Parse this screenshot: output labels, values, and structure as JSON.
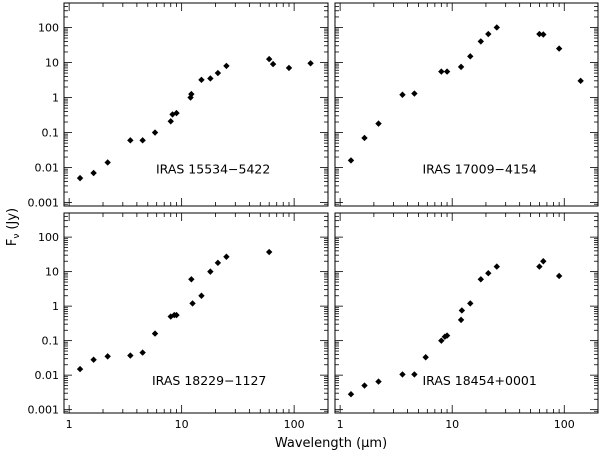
{
  "figure": {
    "ylabel": "F",
    "ylabel_sub": "ν",
    "ylabel_unit": "(Jy)",
    "xlabel": "Wavelength (μm)"
  },
  "chart_data": [
    {
      "type": "scatter",
      "label": "IRAS 15534−5422",
      "xscale": "log",
      "yscale": "log",
      "xlim": [
        0.9,
        200
      ],
      "ylim": [
        0.0008,
        500
      ],
      "x_tick_labels": [
        "1",
        "10",
        "100"
      ],
      "y_tick_labels": [
        "0.001",
        "0.01",
        "0.1",
        "1",
        "10",
        "100"
      ],
      "points": [
        [
          1.25,
          0.005
        ],
        [
          1.65,
          0.007
        ],
        [
          2.2,
          0.014
        ],
        [
          3.5,
          0.06
        ],
        [
          4.5,
          0.06
        ],
        [
          5.8,
          0.1
        ],
        [
          8.0,
          0.21
        ],
        [
          8.3,
          0.33
        ],
        [
          9.0,
          0.36
        ],
        [
          12.0,
          1.0
        ],
        [
          12.2,
          1.25
        ],
        [
          15.0,
          3.2
        ],
        [
          18.0,
          3.5
        ],
        [
          21.0,
          5.0
        ],
        [
          25.0,
          8.0
        ],
        [
          60.0,
          12.5
        ],
        [
          65.0,
          9.0
        ],
        [
          90.0,
          7.0
        ],
        [
          140.0,
          9.5
        ]
      ]
    },
    {
      "type": "scatter",
      "label": "IRAS 17009−4154",
      "xscale": "log",
      "yscale": "log",
      "xlim": [
        0.9,
        200
      ],
      "ylim": [
        0.0008,
        500
      ],
      "x_tick_labels": [
        "1",
        "10",
        "100"
      ],
      "y_tick_labels": [
        "0.001",
        "0.01",
        "0.1",
        "1",
        "10",
        "100"
      ],
      "points": [
        [
          1.25,
          0.016
        ],
        [
          1.65,
          0.07
        ],
        [
          2.2,
          0.18
        ],
        [
          3.6,
          1.2
        ],
        [
          4.6,
          1.3
        ],
        [
          8.0,
          5.5
        ],
        [
          9.0,
          5.5
        ],
        [
          12.0,
          7.5
        ],
        [
          14.5,
          15
        ],
        [
          18.0,
          40
        ],
        [
          21.0,
          65
        ],
        [
          25.0,
          100
        ],
        [
          60.0,
          65
        ],
        [
          65.0,
          63
        ],
        [
          90.0,
          25
        ],
        [
          140.0,
          3.0
        ]
      ]
    },
    {
      "type": "scatter",
      "label": "IRAS 18229−1127",
      "xscale": "log",
      "yscale": "log",
      "xlim": [
        0.9,
        200
      ],
      "ylim": [
        0.0008,
        500
      ],
      "x_tick_labels": [
        "1",
        "10",
        "100"
      ],
      "y_tick_labels": [
        "0.001",
        "0.01",
        "0.1",
        "1",
        "10",
        "100"
      ],
      "points": [
        [
          1.25,
          0.015
        ],
        [
          1.65,
          0.028
        ],
        [
          2.2,
          0.035
        ],
        [
          3.5,
          0.037
        ],
        [
          4.5,
          0.045
        ],
        [
          5.8,
          0.16
        ],
        [
          8.0,
          0.5
        ],
        [
          8.6,
          0.55
        ],
        [
          9.0,
          0.55
        ],
        [
          12.2,
          6.0
        ],
        [
          12.5,
          1.2
        ],
        [
          15.0,
          2.0
        ],
        [
          18.0,
          10
        ],
        [
          21.0,
          18
        ],
        [
          25.0,
          27
        ],
        [
          60.0,
          37
        ]
      ]
    },
    {
      "type": "scatter",
      "label": "IRAS 18454+0001",
      "xscale": "log",
      "yscale": "log",
      "xlim": [
        0.9,
        200
      ],
      "ylim": [
        0.0008,
        500
      ],
      "x_tick_labels": [
        "1",
        "10",
        "100"
      ],
      "y_tick_labels": [
        "0.001",
        "0.01",
        "0.1",
        "1",
        "10",
        "100"
      ],
      "points": [
        [
          1.25,
          0.0028
        ],
        [
          1.65,
          0.005
        ],
        [
          2.2,
          0.0065
        ],
        [
          3.6,
          0.0105
        ],
        [
          4.6,
          0.0105
        ],
        [
          5.8,
          0.033
        ],
        [
          8.0,
          0.1
        ],
        [
          8.6,
          0.13
        ],
        [
          9.0,
          0.14
        ],
        [
          12.0,
          0.4
        ],
        [
          12.2,
          0.75
        ],
        [
          14.5,
          1.2
        ],
        [
          18.0,
          6
        ],
        [
          21.0,
          9
        ],
        [
          25.0,
          14
        ],
        [
          60.0,
          14
        ],
        [
          65.0,
          20
        ],
        [
          90.0,
          7.5
        ]
      ]
    }
  ]
}
